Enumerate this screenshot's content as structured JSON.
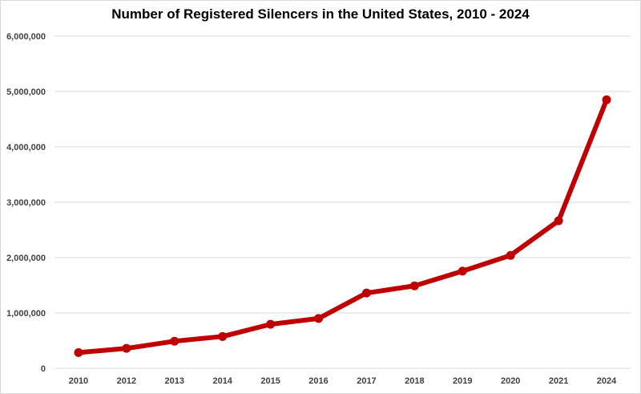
{
  "chart_data": {
    "type": "line",
    "title": "Number of Registered Silencers in the United States, 2010 - 2024",
    "xlabel": "",
    "ylabel": "",
    "categories": [
      "2010",
      "2012",
      "2013",
      "2014",
      "2015",
      "2016",
      "2017",
      "2018",
      "2019",
      "2020",
      "2021",
      "2024"
    ],
    "series": [
      {
        "values": [
          285000,
          360000,
          490000,
          575000,
          795000,
          900000,
          1360000,
          1490000,
          1755000,
          2040000,
          2665000,
          4850000
        ]
      }
    ],
    "ylim": [
      0,
      6000000
    ],
    "yticks": [
      "0",
      "1,000,000",
      "2,000,000",
      "3,000,000",
      "4,000,000",
      "5,000,000",
      "6,000,000"
    ],
    "grid": true,
    "legend": "none",
    "colors": {
      "line": "#c00000",
      "grid": "#d9d9d9",
      "tick_text": "#404040"
    }
  }
}
